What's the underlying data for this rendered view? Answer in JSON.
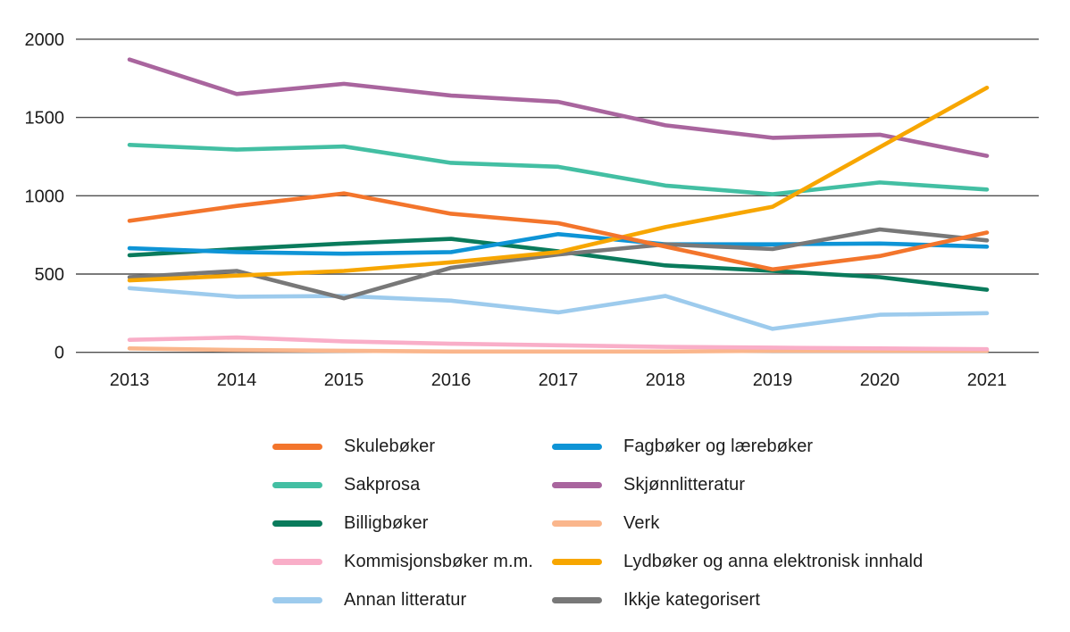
{
  "chart_data": {
    "type": "line",
    "x": [
      2013,
      2014,
      2015,
      2016,
      2017,
      2018,
      2019,
      2020,
      2021
    ],
    "series": [
      {
        "name": "Skulebøker",
        "color": "#f3752c",
        "values": [
          840,
          935,
          1015,
          885,
          825,
          675,
          530,
          615,
          765
        ]
      },
      {
        "name": "Fagbøker og lærebøker",
        "color": "#0e94d6",
        "values": [
          665,
          640,
          630,
          640,
          755,
          690,
          690,
          695,
          675
        ]
      },
      {
        "name": "Sakprosa",
        "color": "#43bfa3",
        "values": [
          1325,
          1295,
          1315,
          1210,
          1185,
          1065,
          1010,
          1085,
          1040
        ]
      },
      {
        "name": "Skjønnlitteratur",
        "color": "#a9659e",
        "values": [
          1870,
          1650,
          1715,
          1640,
          1600,
          1450,
          1370,
          1390,
          1255
        ]
      },
      {
        "name": "Billigbøker",
        "color": "#0a7b5c",
        "values": [
          620,
          660,
          695,
          725,
          645,
          555,
          520,
          480,
          400
        ]
      },
      {
        "name": "Verk",
        "color": "#fab68c",
        "values": [
          25,
          15,
          10,
          5,
          5,
          5,
          10,
          10,
          10
        ]
      },
      {
        "name": "Kommisjonsbøker m.m.",
        "color": "#f9aec8",
        "values": [
          80,
          95,
          70,
          55,
          45,
          35,
          30,
          25,
          20
        ]
      },
      {
        "name": "Lydbøker og anna elektronisk innhald",
        "color": "#f7a600",
        "values": [
          460,
          490,
          520,
          575,
          640,
          800,
          930,
          1310,
          1690
        ]
      },
      {
        "name": "Annan litteratur",
        "color": "#9dcbed",
        "values": [
          410,
          355,
          360,
          330,
          255,
          360,
          150,
          240,
          250
        ]
      },
      {
        "name": "Ikkje kategorisert",
        "color": "#787878",
        "values": [
          480,
          520,
          345,
          540,
          625,
          690,
          660,
          785,
          715
        ]
      }
    ],
    "title": "",
    "xlabel": "",
    "ylabel": "",
    "ylim": [
      0,
      2000
    ],
    "yticks": [
      0,
      500,
      1000,
      1500,
      2000
    ],
    "xticklabels": [
      "2013",
      "2014",
      "2015",
      "2016",
      "2017",
      "2018",
      "2019",
      "2020",
      "2021"
    ],
    "grid": true,
    "gridline_color": "#4f4f4f",
    "legend_position": "bottom-two-columns",
    "legend_columns": [
      [
        "Skulebøker",
        "Sakprosa",
        "Billigbøker",
        "Kommisjonsbøker m.m.",
        "Annan litteratur"
      ],
      [
        "Fagbøker og lærebøker",
        "Skjønnlitteratur",
        "Verk",
        "Lydbøker og anna elektronisk innhald",
        "Ikkje kategorisert"
      ]
    ],
    "z_order": [
      "Verk",
      "Kommisjonsbøker m.m.",
      "Annan litteratur",
      "Sakprosa",
      "Skjønnlitteratur",
      "Billigbøker",
      "Fagbøker og lærebøker",
      "Ikkje kategorisert",
      "Lydbøker og anna elektronisk innhald",
      "Skulebøker"
    ]
  }
}
